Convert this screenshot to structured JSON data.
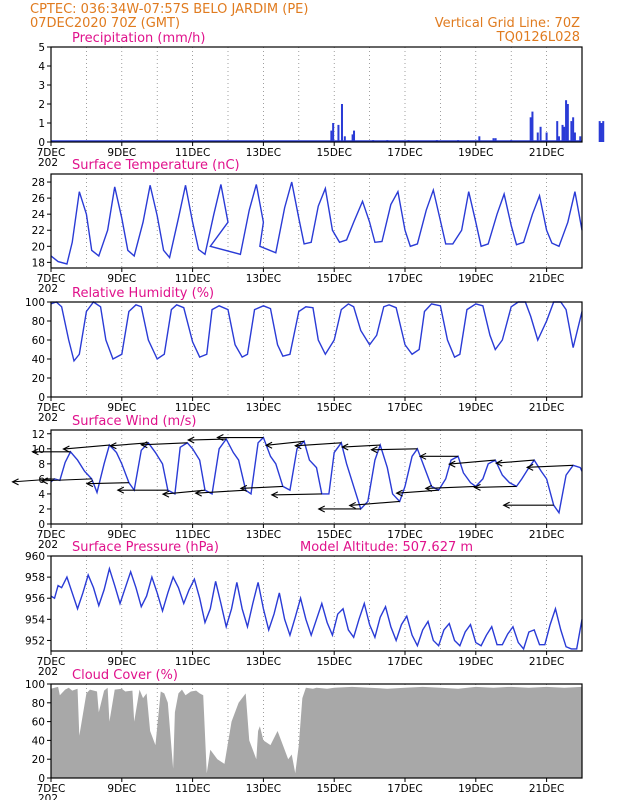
{
  "header": {
    "line1_left": "CPTEC:   036:34W-07:57S   BELO JARDIM (PE)",
    "line2_left": "07DEC2020 70Z (GMT)",
    "line1_right": "Vertical Grid Line: 70Z",
    "line2_right": "TQ0126L028"
  },
  "x_ticks": [
    "7DEC",
    "9DEC",
    "11DEC",
    "13DEC",
    "15DEC",
    "17DEC",
    "19DEC",
    "21DEC"
  ],
  "year_fragment": "202",
  "extra_label": "Model Altitude: 507.627 m",
  "colors": {
    "header": "#e07b1f",
    "title": "#e0128c",
    "series": "#2a3bd6",
    "cloud": "#a8a8a8"
  },
  "chart_data": [
    {
      "id": "precip",
      "type": "bar",
      "title": "Precipitation (mm/h)",
      "ylim": [
        0,
        5
      ],
      "yticks": [
        0,
        1,
        2,
        3,
        4,
        5
      ],
      "xlim_days": [
        7,
        22
      ],
      "values": [
        [
          14.92,
          0.6
        ],
        [
          14.97,
          1.0
        ],
        [
          15.12,
          0.9
        ],
        [
          15.22,
          2.0
        ],
        [
          15.3,
          0.3
        ],
        [
          15.52,
          0.4
        ],
        [
          15.56,
          0.6
        ],
        [
          16.1,
          0.1
        ],
        [
          16.5,
          0.1
        ],
        [
          17.1,
          0.1
        ],
        [
          17.9,
          0.1
        ],
        [
          18.5,
          0.1
        ],
        [
          19.1,
          0.3
        ],
        [
          19.5,
          0.2
        ],
        [
          19.56,
          0.2
        ],
        [
          20.0,
          0.1
        ],
        [
          20.55,
          1.3
        ],
        [
          20.6,
          1.6
        ],
        [
          20.75,
          0.5
        ],
        [
          20.83,
          0.8
        ],
        [
          21.0,
          0.5
        ],
        [
          21.3,
          1.1
        ],
        [
          21.35,
          0.3
        ],
        [
          21.45,
          0.9
        ],
        [
          21.5,
          0.8
        ],
        [
          21.55,
          2.2
        ],
        [
          21.6,
          2.0
        ],
        [
          21.7,
          1.1
        ],
        [
          21.75,
          1.3
        ],
        [
          21.8,
          0.5
        ],
        [
          21.95,
          0.3
        ],
        [
          22.5,
          1.1
        ],
        [
          22.55,
          1.0
        ],
        [
          22.6,
          1.1
        ]
      ]
    },
    {
      "id": "temp",
      "type": "line",
      "title": "Surface Temperature (nC)",
      "ylim": [
        17.3,
        29
      ],
      "yticks": [
        18,
        20,
        22,
        24,
        26,
        28
      ],
      "xlim_days": [
        7,
        22
      ],
      "x": [
        7.0,
        7.2,
        7.45,
        7.6,
        7.8,
        8.0,
        8.15,
        8.35,
        8.6,
        8.8,
        9.0,
        9.17,
        9.35,
        9.6,
        9.8,
        10.0,
        10.18,
        10.35,
        10.6,
        10.8,
        11.0,
        11.17,
        11.35,
        11.6,
        11.8,
        12.0,
        11.5,
        12.35,
        12.6,
        12.8,
        13.0,
        12.9,
        13.35,
        13.6,
        13.8,
        14.0,
        14.15,
        14.35,
        14.55,
        14.75,
        14.95,
        15.15,
        15.35,
        15.55,
        15.8,
        16.0,
        16.15,
        16.35,
        16.6,
        16.8,
        17.0,
        17.15,
        17.35,
        17.6,
        17.8,
        18.0,
        18.15,
        18.35,
        18.6,
        18.8,
        19.0,
        19.15,
        19.35,
        19.6,
        19.8,
        20.0,
        20.15,
        20.35,
        20.6,
        20.8,
        21.0,
        21.15,
        21.35,
        21.6,
        21.8,
        22.0
      ],
      "values": [
        18.8,
        18.1,
        17.8,
        20.5,
        26.8,
        24.0,
        19.5,
        18.8,
        22.0,
        27.4,
        23.5,
        19.5,
        18.8,
        23.0,
        27.6,
        23.8,
        19.5,
        18.6,
        23.5,
        27.6,
        23.0,
        19.6,
        19.0,
        24.0,
        27.7,
        23.0,
        20.0,
        19.0,
        24.5,
        27.7,
        23.0,
        20.0,
        19.2,
        24.8,
        28.0,
        23.5,
        20.3,
        20.5,
        25.0,
        27.2,
        22.0,
        20.5,
        20.8,
        23.0,
        25.6,
        23.0,
        20.5,
        20.6,
        25.2,
        26.8,
        22.0,
        20.0,
        20.3,
        24.5,
        27.0,
        23.2,
        20.3,
        20.3,
        22.0,
        26.8,
        23.0,
        20.0,
        20.3,
        24.0,
        26.5,
        22.6,
        20.2,
        20.5,
        24.0,
        26.3,
        22.0,
        20.4,
        20.0,
        23.0,
        26.8,
        22.0
      ]
    },
    {
      "id": "rh",
      "type": "line",
      "title": "Relative Humidity (%)",
      "ylim": [
        0,
        100
      ],
      "yticks": [
        0,
        20,
        40,
        60,
        80,
        100
      ],
      "xlim_days": [
        7,
        22
      ],
      "x": [
        7.0,
        7.15,
        7.3,
        7.5,
        7.65,
        7.8,
        8.0,
        8.2,
        8.4,
        8.55,
        8.75,
        9.0,
        9.2,
        9.4,
        9.55,
        9.75,
        10.0,
        10.2,
        10.4,
        10.55,
        10.75,
        11.0,
        11.2,
        11.4,
        11.55,
        11.75,
        12.0,
        12.2,
        12.4,
        12.55,
        12.75,
        13.0,
        13.2,
        13.4,
        13.55,
        13.75,
        14.0,
        14.2,
        14.4,
        14.55,
        14.75,
        15.0,
        15.2,
        15.4,
        15.55,
        15.75,
        16.0,
        16.2,
        16.4,
        16.55,
        16.75,
        17.0,
        17.2,
        17.4,
        17.55,
        17.75,
        18.0,
        18.2,
        18.4,
        18.55,
        18.75,
        19.0,
        19.2,
        19.4,
        19.55,
        19.75,
        20.0,
        20.2,
        20.4,
        20.55,
        20.75,
        21.0,
        21.2,
        21.4,
        21.55,
        21.75,
        22.0
      ],
      "values": [
        98,
        100,
        95,
        60,
        38,
        45,
        90,
        100,
        95,
        60,
        40,
        45,
        90,
        97,
        95,
        60,
        40,
        45,
        92,
        97,
        94,
        58,
        42,
        45,
        92,
        96,
        92,
        55,
        42,
        45,
        92,
        96,
        93,
        55,
        43,
        45,
        90,
        95,
        94,
        60,
        45,
        60,
        92,
        98,
        95,
        70,
        55,
        65,
        95,
        97,
        94,
        55,
        45,
        50,
        90,
        98,
        96,
        60,
        42,
        45,
        92,
        98,
        96,
        65,
        50,
        60,
        95,
        100,
        100,
        85,
        60,
        80,
        100,
        100,
        92,
        52,
        90
      ]
    },
    {
      "id": "wind",
      "type": "line",
      "title": "Surface Wind (m/s)",
      "ylim": [
        0,
        12.5
      ],
      "yticks": [
        0,
        2,
        4,
        6,
        8,
        10,
        12
      ],
      "xlim_days": [
        7,
        22
      ],
      "x": [
        7.0,
        7.1,
        7.25,
        7.4,
        7.55,
        7.75,
        7.95,
        8.15,
        8.3,
        8.5,
        8.65,
        8.85,
        9.0,
        9.2,
        9.35,
        9.55,
        9.75,
        9.95,
        10.15,
        10.3,
        10.5,
        10.65,
        10.85,
        11.0,
        11.2,
        11.35,
        11.55,
        11.75,
        11.95,
        12.15,
        12.3,
        12.5,
        12.65,
        12.85,
        13.0,
        13.2,
        13.35,
        13.55,
        13.75,
        13.95,
        14.15,
        14.3,
        14.5,
        14.65,
        14.85,
        15.0,
        15.2,
        15.35,
        15.55,
        15.75,
        15.95,
        16.15,
        16.3,
        16.5,
        16.65,
        16.85,
        17.0,
        17.2,
        17.35,
        17.55,
        17.75,
        17.95,
        18.15,
        18.3,
        18.5,
        18.65,
        18.85,
        19.0,
        19.2,
        19.35,
        19.55,
        19.75,
        19.95,
        20.15,
        20.3,
        20.5,
        20.65,
        20.85,
        21.0,
        21.2,
        21.35,
        21.55,
        21.75,
        21.95,
        22.0
      ],
      "values": [
        5.6,
        6.0,
        5.8,
        8.2,
        9.6,
        8.5,
        7.0,
        6.0,
        4.2,
        8.0,
        10.5,
        9.5,
        8.0,
        5.5,
        4.5,
        9.8,
        10.8,
        9.5,
        8.0,
        4.5,
        4.0,
        10.2,
        10.8,
        10.0,
        8.5,
        4.5,
        4.0,
        10.0,
        11.3,
        9.5,
        8.5,
        4.5,
        4.0,
        10.8,
        11.5,
        9.0,
        8.0,
        5.0,
        4.5,
        10.0,
        11.0,
        8.5,
        7.5,
        4.0,
        4.0,
        9.5,
        10.8,
        8.0,
        5.0,
        2.0,
        3.0,
        8.5,
        10.5,
        7.5,
        4.0,
        3.0,
        5.0,
        9.0,
        10.0,
        7.5,
        5.0,
        4.5,
        6.0,
        8.5,
        9.0,
        6.8,
        5.5,
        5.0,
        6.0,
        8.0,
        8.5,
        6.5,
        5.5,
        5.0,
        6.0,
        7.5,
        8.5,
        7.0,
        6.0,
        2.5,
        1.5,
        6.5,
        7.8,
        7.5,
        7.0
      ]
    },
    {
      "id": "pressure",
      "type": "line",
      "title": "Surface Pressure (hPa)",
      "ylim": [
        951,
        960
      ],
      "yticks": [
        952,
        954,
        956,
        958,
        960
      ],
      "xlim_days": [
        7,
        22
      ],
      "x": [
        7.0,
        7.1,
        7.2,
        7.3,
        7.45,
        7.6,
        7.75,
        7.9,
        8.05,
        8.2,
        8.35,
        8.5,
        8.65,
        8.8,
        8.95,
        9.1,
        9.25,
        9.4,
        9.55,
        9.7,
        9.85,
        10.0,
        10.15,
        10.3,
        10.45,
        10.6,
        10.75,
        10.9,
        11.05,
        11.2,
        11.35,
        11.5,
        11.65,
        11.8,
        11.95,
        12.1,
        12.25,
        12.4,
        12.55,
        12.7,
        12.85,
        13.0,
        13.15,
        13.3,
        13.45,
        13.6,
        13.75,
        13.9,
        14.05,
        14.2,
        14.35,
        14.5,
        14.65,
        14.8,
        14.95,
        15.1,
        15.25,
        15.4,
        15.55,
        15.7,
        15.85,
        16.0,
        16.15,
        16.3,
        16.45,
        16.6,
        16.75,
        16.9,
        17.05,
        17.2,
        17.35,
        17.5,
        17.65,
        17.8,
        17.95,
        18.1,
        18.25,
        18.4,
        18.55,
        18.7,
        18.85,
        19.0,
        19.15,
        19.3,
        19.45,
        19.6,
        19.75,
        19.9,
        20.05,
        20.2,
        20.35,
        20.5,
        20.65,
        20.8,
        20.95,
        21.1,
        21.25,
        21.4,
        21.55,
        21.7,
        21.85,
        22.0
      ],
      "values": [
        956.2,
        956.0,
        957.2,
        957.0,
        958.0,
        956.5,
        955.0,
        956.5,
        958.2,
        957.0,
        955.3,
        956.8,
        958.8,
        957.2,
        955.5,
        957.0,
        958.5,
        957.0,
        955.2,
        956.2,
        958.0,
        956.5,
        954.8,
        956.5,
        958.0,
        957.0,
        955.5,
        956.8,
        957.8,
        956.0,
        953.7,
        955.0,
        957.6,
        955.5,
        953.3,
        955.0,
        957.5,
        955.0,
        953.3,
        955.5,
        957.5,
        955.0,
        953.0,
        954.5,
        956.5,
        954.0,
        952.5,
        954.2,
        956.0,
        954.0,
        952.5,
        954.0,
        955.5,
        953.7,
        952.5,
        954.5,
        955.0,
        953.0,
        952.3,
        954.0,
        955.5,
        953.5,
        952.3,
        954.2,
        955.2,
        953.3,
        952.0,
        953.5,
        954.3,
        952.5,
        951.5,
        953.0,
        953.8,
        952.0,
        951.5,
        953.0,
        953.6,
        952.0,
        951.5,
        952.8,
        953.5,
        951.8,
        951.5,
        952.5,
        953.3,
        951.6,
        951.6,
        952.6,
        953.3,
        951.8,
        951.2,
        952.8,
        953.0,
        951.6,
        951.6,
        953.5,
        955.0,
        953.0,
        951.4,
        951.2,
        951.2,
        954.0
      ]
    },
    {
      "id": "cloud",
      "type": "area",
      "title": "Cloud Cover (%)",
      "ylim": [
        0,
        100
      ],
      "yticks": [
        0,
        20,
        40,
        60,
        80,
        100
      ],
      "xlim_days": [
        7,
        22
      ],
      "x": [
        7.0,
        7.1,
        7.2,
        7.25,
        7.4,
        7.5,
        7.6,
        7.75,
        7.8,
        8.0,
        8.1,
        8.3,
        8.35,
        8.5,
        8.6,
        8.65,
        8.8,
        9.0,
        9.1,
        9.3,
        9.35,
        9.5,
        9.6,
        9.7,
        9.8,
        9.95,
        10.1,
        10.2,
        10.3,
        10.45,
        10.5,
        10.6,
        10.7,
        10.8,
        10.95,
        11.1,
        11.2,
        11.3,
        11.4,
        11.5,
        11.7,
        11.9,
        12.1,
        12.3,
        12.5,
        12.6,
        12.7,
        12.75,
        12.8,
        12.85,
        12.9,
        13.0,
        13.2,
        13.4,
        13.6,
        13.7,
        13.8,
        13.9,
        14.0,
        14.05,
        14.1,
        14.2,
        14.4,
        14.5,
        14.8,
        15.0,
        15.5,
        16.0,
        16.5,
        17.0,
        17.5,
        18.0,
        18.5,
        19.0,
        19.5,
        20.0,
        20.5,
        21.0,
        21.5,
        22.0
      ],
      "values": [
        95,
        96,
        97,
        88,
        94,
        96,
        93,
        95,
        45,
        90,
        94,
        92,
        70,
        93,
        96,
        60,
        94,
        95,
        92,
        93,
        60,
        94,
        85,
        90,
        50,
        35,
        92,
        90,
        80,
        10,
        70,
        90,
        94,
        88,
        92,
        93,
        90,
        88,
        5,
        30,
        20,
        15,
        60,
        80,
        90,
        40,
        30,
        25,
        20,
        50,
        55,
        40,
        35,
        50,
        30,
        20,
        25,
        5,
        35,
        60,
        85,
        96,
        95,
        96,
        95,
        96,
        97,
        96,
        95,
        96,
        97,
        96,
        95,
        97,
        96,
        97,
        96,
        97,
        96,
        97
      ]
    }
  ]
}
